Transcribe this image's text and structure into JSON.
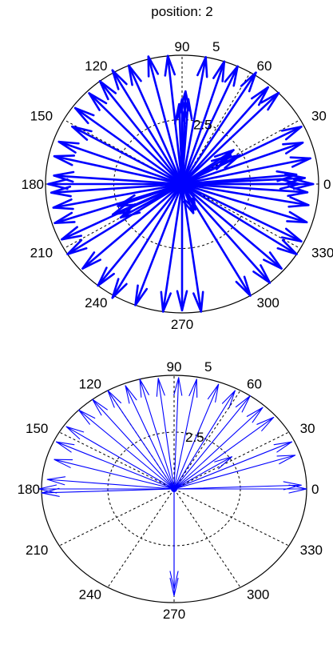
{
  "figure_title": "position: 2",
  "colors": {
    "arrow": "#0000ff",
    "axis": "#000000",
    "background": "#ffffff"
  },
  "chart_data": [
    {
      "type": "polar-compass",
      "title": "position: 2",
      "r_max": 5,
      "r_ticks": [
        2.5,
        5
      ],
      "r_tick_labels": [
        "2.5",
        "5"
      ],
      "angle_ticks": [
        0,
        30,
        60,
        90,
        120,
        150,
        180,
        210,
        240,
        270,
        300,
        330
      ],
      "angle_tick_labels": [
        "0",
        "30",
        "60",
        "90",
        "120",
        "150",
        "180",
        "210",
        "240",
        "270",
        "300",
        "330"
      ],
      "grid": true,
      "arrow_style": "bold",
      "arrows": [
        {
          "theta": 0,
          "r": 4.3
        },
        {
          "theta": 0,
          "r": 4.8
        },
        {
          "theta": 3,
          "r": 4.5
        },
        {
          "theta": 5,
          "r": 4.2
        },
        {
          "theta": 12,
          "r": 4.8
        },
        {
          "theta": 20,
          "r": 4.7
        },
        {
          "theta": 27,
          "r": 4.9
        },
        {
          "theta": 28,
          "r": 2.4
        },
        {
          "theta": 32,
          "r": 2.1
        },
        {
          "theta": 35,
          "r": 2.3
        },
        {
          "theta": 45,
          "r": 5.0
        },
        {
          "theta": 50,
          "r": 4.9
        },
        {
          "theta": 58,
          "r": 5.1
        },
        {
          "theta": 66,
          "r": 5.0
        },
        {
          "theta": 72,
          "r": 5.0
        },
        {
          "theta": 80,
          "r": 5.0
        },
        {
          "theta": 86,
          "r": 3.3
        },
        {
          "theta": 88,
          "r": 3.6
        },
        {
          "theta": 90,
          "r": 3.3
        },
        {
          "theta": 92,
          "r": 3.1
        },
        {
          "theta": 96,
          "r": 5.0
        },
        {
          "theta": 104,
          "r": 5.1
        },
        {
          "theta": 113,
          "r": 5.0
        },
        {
          "theta": 120,
          "r": 5.1
        },
        {
          "theta": 127,
          "r": 5.0
        },
        {
          "theta": 134,
          "r": 4.9
        },
        {
          "theta": 143,
          "r": 4.9
        },
        {
          "theta": 151,
          "r": 4.6
        },
        {
          "theta": 160,
          "r": 4.8
        },
        {
          "theta": 167,
          "r": 4.8
        },
        {
          "theta": 176,
          "r": 4.7
        },
        {
          "theta": 180,
          "r": 4.9
        },
        {
          "theta": 184,
          "r": 4.8
        },
        {
          "theta": 191,
          "r": 4.8
        },
        {
          "theta": 200,
          "r": 2.5
        },
        {
          "theta": 205,
          "r": 2.8
        },
        {
          "theta": 210,
          "r": 2.6
        },
        {
          "theta": 198,
          "r": 4.9
        },
        {
          "theta": 206,
          "r": 4.9
        },
        {
          "theta": 213,
          "r": 5.0
        },
        {
          "theta": 222,
          "r": 4.9
        },
        {
          "theta": 232,
          "r": 5.0
        },
        {
          "theta": 240,
          "r": 5.1
        },
        {
          "theta": 250,
          "r": 5.0
        },
        {
          "theta": 262,
          "r": 5.0
        },
        {
          "theta": 270,
          "r": 4.9
        },
        {
          "theta": 278,
          "r": 5.0
        },
        {
          "theta": 290,
          "r": 1.2
        },
        {
          "theta": 296,
          "r": 1.1
        },
        {
          "theta": 300,
          "r": 5.0
        },
        {
          "theta": 310,
          "r": 5.0
        },
        {
          "theta": 318,
          "r": 4.9
        },
        {
          "theta": 327,
          "r": 5.0
        },
        {
          "theta": 333,
          "r": 4.9
        },
        {
          "theta": 342,
          "r": 4.8
        },
        {
          "theta": 350,
          "r": 4.7
        },
        {
          "theta": 356,
          "r": 4.6
        }
      ]
    },
    {
      "type": "polar-compass",
      "title": "",
      "r_max": 5,
      "r_ticks": [
        2.5,
        5
      ],
      "r_tick_labels": [
        "2.5",
        "5"
      ],
      "angle_ticks": [
        0,
        30,
        60,
        90,
        120,
        150,
        180,
        210,
        240,
        270,
        300,
        330
      ],
      "angle_tick_labels": [
        "0",
        "30",
        "60",
        "90",
        "120",
        "150",
        "180",
        "210",
        "240",
        "270",
        "300",
        "330"
      ],
      "grid": true,
      "arrow_style": "thin",
      "arrows": [
        {
          "theta": 0,
          "r": 5.0
        },
        {
          "theta": 2,
          "r": 4.8
        },
        {
          "theta": 18,
          "r": 4.8
        },
        {
          "theta": 25,
          "r": 4.9
        },
        {
          "theta": 33,
          "r": 2.6
        },
        {
          "theta": 40,
          "r": 4.9
        },
        {
          "theta": 47,
          "r": 4.9
        },
        {
          "theta": 55,
          "r": 5.0
        },
        {
          "theta": 62,
          "r": 4.9
        },
        {
          "theta": 70,
          "r": 4.9
        },
        {
          "theta": 80,
          "r": 4.9
        },
        {
          "theta": 88,
          "r": 4.9
        },
        {
          "theta": 97,
          "r": 4.9
        },
        {
          "theta": 105,
          "r": 5.0
        },
        {
          "theta": 112,
          "r": 4.9
        },
        {
          "theta": 120,
          "r": 5.0
        },
        {
          "theta": 128,
          "r": 5.0
        },
        {
          "theta": 136,
          "r": 5.0
        },
        {
          "theta": 146,
          "r": 4.9
        },
        {
          "theta": 155,
          "r": 4.9
        },
        {
          "theta": 164,
          "r": 4.7
        },
        {
          "theta": 175,
          "r": 4.8
        },
        {
          "theta": 180,
          "r": 5.1
        },
        {
          "theta": 182,
          "r": 5.0
        },
        {
          "theta": 270,
          "r": 4.4
        },
        {
          "theta": 270,
          "r": 4.7
        }
      ]
    }
  ]
}
